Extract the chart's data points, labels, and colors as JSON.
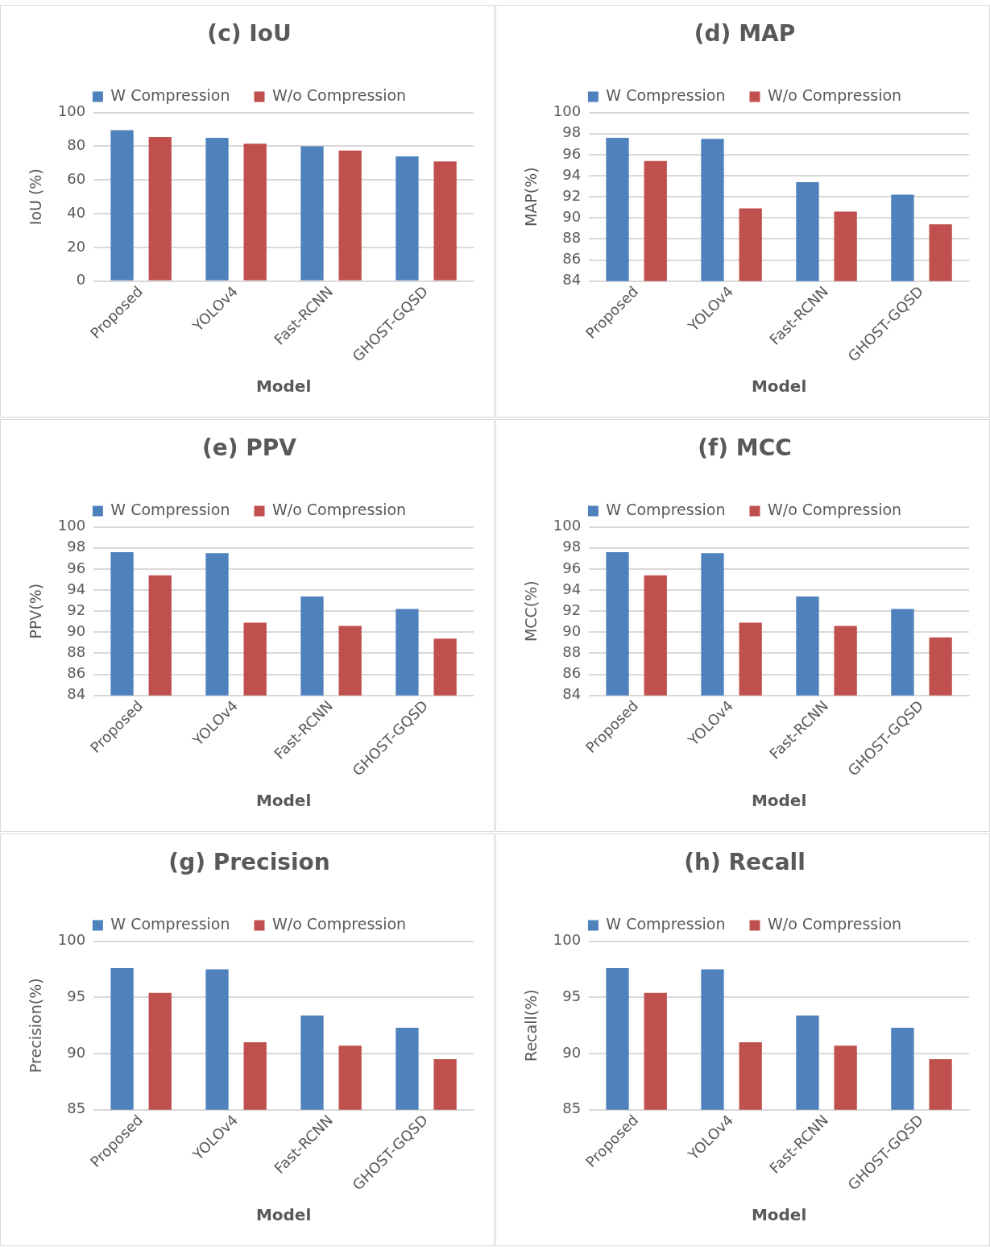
{
  "chart_data": [
    {
      "type": "bar",
      "title": "(c) IoU",
      "xlabel": "Model",
      "ylabel": "IoU (%)",
      "categories": [
        "Proposed",
        "YOLOv4",
        "Fast-RCNN",
        "GHOST-GQSD"
      ],
      "series": [
        {
          "name": "W Compression",
          "color": "#4f81bd",
          "values": [
            89.5,
            85,
            80,
            74
          ]
        },
        {
          "name": "W/o Compression",
          "color": "#c0504d",
          "values": [
            85.5,
            81.5,
            77.5,
            71
          ]
        }
      ],
      "ylim": [
        0,
        100
      ],
      "yticks": [
        0,
        20,
        40,
        60,
        80,
        100
      ],
      "grid": "y",
      "legend": "top"
    },
    {
      "type": "bar",
      "title": "(d) MAP",
      "xlabel": "Model",
      "ylabel": "MAP(%)",
      "categories": [
        "Proposed",
        "YOLOv4",
        "Fast-RCNN",
        "GHOST-GQSD"
      ],
      "series": [
        {
          "name": "W Compression",
          "color": "#4f81bd",
          "values": [
            97.6,
            97.5,
            93.4,
            92.2
          ]
        },
        {
          "name": "W/o Compression",
          "color": "#c0504d",
          "values": [
            95.4,
            90.9,
            90.6,
            89.4
          ]
        }
      ],
      "ylim": [
        84,
        100
      ],
      "yticks": [
        84,
        86,
        88,
        90,
        92,
        94,
        96,
        98,
        100
      ],
      "grid": "y",
      "legend": "top"
    },
    {
      "type": "bar",
      "title": "(e) PPV",
      "xlabel": "Model",
      "ylabel": "PPV(%)",
      "categories": [
        "Proposed",
        "YOLOv4",
        "Fast-RCNN",
        "GHOST-GQSD"
      ],
      "series": [
        {
          "name": "W Compression",
          "color": "#4f81bd",
          "values": [
            97.6,
            97.5,
            93.4,
            92.2
          ]
        },
        {
          "name": "W/o Compression",
          "color": "#c0504d",
          "values": [
            95.4,
            90.9,
            90.6,
            89.4
          ]
        }
      ],
      "ylim": [
        84,
        100
      ],
      "yticks": [
        84,
        86,
        88,
        90,
        92,
        94,
        96,
        98,
        100
      ],
      "grid": "y",
      "legend": "top"
    },
    {
      "type": "bar",
      "title": "(f) MCC",
      "xlabel": "Model",
      "ylabel": "MCC(%)",
      "categories": [
        "Proposed",
        "YOLOv4",
        "Fast-RCNN",
        "GHOST-GQSD"
      ],
      "series": [
        {
          "name": "W Compression",
          "color": "#4f81bd",
          "values": [
            97.6,
            97.5,
            93.4,
            92.2
          ]
        },
        {
          "name": "W/o Compression",
          "color": "#c0504d",
          "values": [
            95.4,
            90.9,
            90.6,
            89.5
          ]
        }
      ],
      "ylim": [
        84,
        100
      ],
      "yticks": [
        84,
        86,
        88,
        90,
        92,
        94,
        96,
        98,
        100
      ],
      "grid": "y",
      "legend": "top"
    },
    {
      "type": "bar",
      "title": "(g) Precision",
      "xlabel": "Model",
      "ylabel": "Precision(%)",
      "categories": [
        "Proposed",
        "YOLOv4",
        "Fast-RCNN",
        "GHOST-GQSD"
      ],
      "series": [
        {
          "name": "W Compression",
          "color": "#4f81bd",
          "values": [
            97.6,
            97.5,
            93.4,
            92.3
          ]
        },
        {
          "name": "W/o Compression",
          "color": "#c0504d",
          "values": [
            95.4,
            91,
            90.7,
            89.5
          ]
        }
      ],
      "ylim": [
        85,
        100
      ],
      "yticks": [
        85,
        90,
        95,
        100
      ],
      "grid": "y",
      "legend": "top"
    },
    {
      "type": "bar",
      "title": "(h) Recall",
      "xlabel": "Model",
      "ylabel": "Recall(%)",
      "categories": [
        "Proposed",
        "YOLOv4",
        "Fast-RCNN",
        "GHOST-GQSD"
      ],
      "series": [
        {
          "name": "W Compression",
          "color": "#4f81bd",
          "values": [
            97.6,
            97.5,
            93.4,
            92.3
          ]
        },
        {
          "name": "W/o Compression",
          "color": "#c0504d",
          "values": [
            95.4,
            91,
            90.7,
            89.5
          ]
        }
      ],
      "ylim": [
        85,
        100
      ],
      "yticks": [
        85,
        90,
        95,
        100
      ],
      "grid": "y",
      "legend": "top"
    }
  ]
}
